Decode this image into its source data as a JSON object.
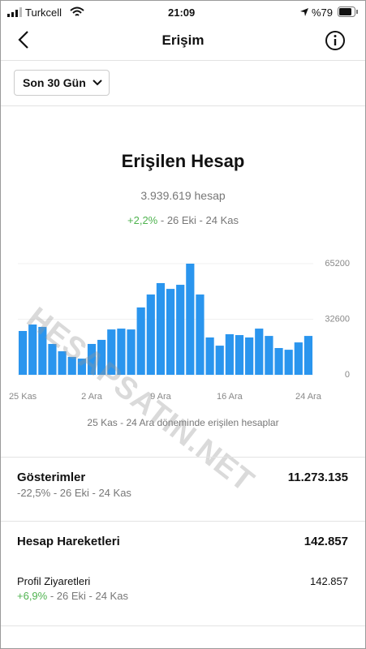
{
  "status_bar": {
    "carrier": "Turkcell",
    "time": "21:09",
    "battery": "%79"
  },
  "header": {
    "title": "Erişim"
  },
  "filter": {
    "label": "Son 30 Gün"
  },
  "chart_data": {
    "type": "bar",
    "title": "Erişilen Hesap",
    "subtitle": "3.939.619 hesap",
    "change": "+2,2%",
    "change_period": "- 26 Eki - 24 Kas",
    "watermark": "HESAPSATIN.NET",
    "caption": "25 Kas - 24 Ara döneminde erişilen hesaplar",
    "categories": [
      "25 Kas",
      null,
      null,
      null,
      null,
      null,
      null,
      "2 Ara",
      null,
      null,
      null,
      null,
      null,
      null,
      "9 Ara",
      null,
      null,
      null,
      null,
      null,
      null,
      "16 Ara",
      null,
      null,
      null,
      null,
      null,
      null,
      null,
      "24 Ara"
    ],
    "values": [
      25700,
      29500,
      28100,
      18100,
      13800,
      10500,
      9500,
      18100,
      20500,
      26600,
      27100,
      26600,
      39500,
      47100,
      53800,
      50400,
      52800,
      65200,
      47100,
      21900,
      17100,
      23800,
      23300,
      21900,
      27100,
      22800,
      15700,
      14700,
      19000,
      22800
    ],
    "color": "#2a95ee",
    "ylim": [
      0,
      65200
    ],
    "yticks": [
      0,
      32600,
      65200
    ],
    "grid": true
  },
  "sections": [
    {
      "title": "Gösterimler",
      "value": "11.273.135",
      "change": "-22,5%",
      "period": "- 26 Eki - 24 Kas"
    },
    {
      "title": "Hesap Hareketleri",
      "value": "142.857"
    },
    {
      "title": "Profil Ziyaretleri",
      "value": "142.857",
      "change": "+6,9%",
      "period": "- 26 Eki - 24 Kas"
    }
  ]
}
